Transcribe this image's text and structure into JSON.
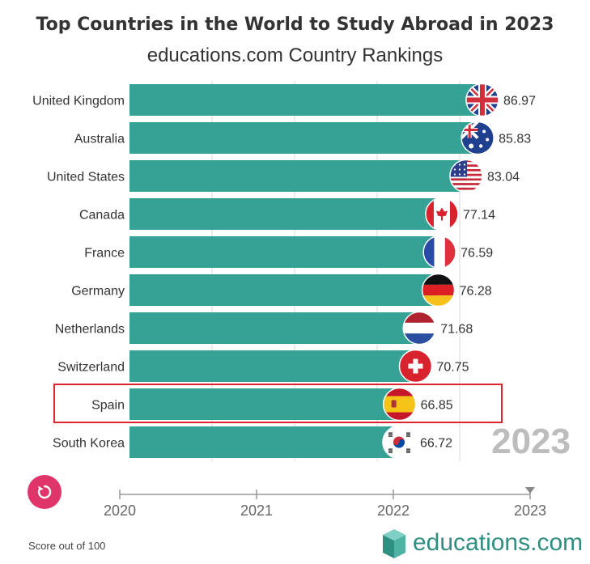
{
  "header": {
    "title": "Top Countries in the World to Study Abroad in 2023",
    "subtitle": "educations.com Country Rankings"
  },
  "colors": {
    "bar": "#35a295",
    "highlight": "#e0242f",
    "replay": "#e0356a",
    "brand": "#2f8f80",
    "year_watermark": "#bdbdbd"
  },
  "controls": {
    "replay_icon": "replay-icon"
  },
  "footer": {
    "note": "Score out of 100",
    "brand": "educations.com",
    "brand_icon": "educations-book-logo-icon"
  },
  "chart_data": {
    "type": "bar",
    "orientation": "horizontal",
    "current_year": "2023",
    "categories": [
      "United Kingdom",
      "Australia",
      "United States",
      "Canada",
      "France",
      "Germany",
      "Netherlands",
      "Switzerland",
      "Spain",
      "South Korea"
    ],
    "values": [
      86.97,
      85.83,
      83.04,
      77.14,
      76.59,
      76.28,
      71.68,
      70.75,
      66.85,
      66.72
    ],
    "value_labels": [
      "86.97",
      "85.83",
      "83.04",
      "77.14",
      "76.59",
      "76.28",
      "71.68",
      "70.75",
      "66.85",
      "66.72"
    ],
    "flags": [
      "uk-flag-icon",
      "australia-flag-icon",
      "us-flag-icon",
      "canada-flag-icon",
      "france-flag-icon",
      "germany-flag-icon",
      "netherlands-flag-icon",
      "switzerland-flag-icon",
      "spain-flag-icon",
      "south-korea-flag-icon"
    ],
    "highlighted": "Spain",
    "timeline": {
      "ticks": [
        "2020",
        "2021",
        "2022",
        "2023"
      ],
      "current": "2023"
    },
    "grid": true
  }
}
